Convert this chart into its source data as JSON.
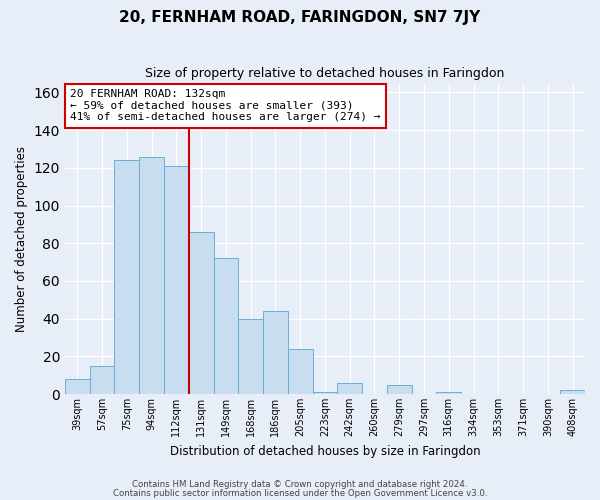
{
  "title": "20, FERNHAM ROAD, FARINGDON, SN7 7JY",
  "subtitle": "Size of property relative to detached houses in Faringdon",
  "xlabel": "Distribution of detached houses by size in Faringdon",
  "ylabel": "Number of detached properties",
  "bar_labels": [
    "39sqm",
    "57sqm",
    "75sqm",
    "94sqm",
    "112sqm",
    "131sqm",
    "149sqm",
    "168sqm",
    "186sqm",
    "205sqm",
    "223sqm",
    "242sqm",
    "260sqm",
    "279sqm",
    "297sqm",
    "316sqm",
    "334sqm",
    "353sqm",
    "371sqm",
    "390sqm",
    "408sqm"
  ],
  "bar_heights": [
    8,
    15,
    124,
    126,
    121,
    86,
    72,
    40,
    44,
    24,
    1,
    6,
    0,
    5,
    0,
    1,
    0,
    0,
    0,
    0,
    2
  ],
  "bar_color": "#c8ddf0",
  "bar_edge_color": "#6aaed6",
  "vline_color": "#cc0000",
  "annotation_text": "20 FERNHAM ROAD: 132sqm\n← 59% of detached houses are smaller (393)\n41% of semi-detached houses are larger (274) →",
  "annotation_box_color": "white",
  "annotation_box_edgecolor": "#cc0000",
  "ylim": [
    0,
    165
  ],
  "yticks": [
    0,
    20,
    40,
    60,
    80,
    100,
    120,
    140,
    160
  ],
  "footer_line1": "Contains HM Land Registry data © Crown copyright and database right 2024.",
  "footer_line2": "Contains public sector information licensed under the Open Government Licence v3.0.",
  "bg_color": "#e8eef8",
  "grid_color": "white",
  "fig_width": 6.0,
  "fig_height": 5.0
}
